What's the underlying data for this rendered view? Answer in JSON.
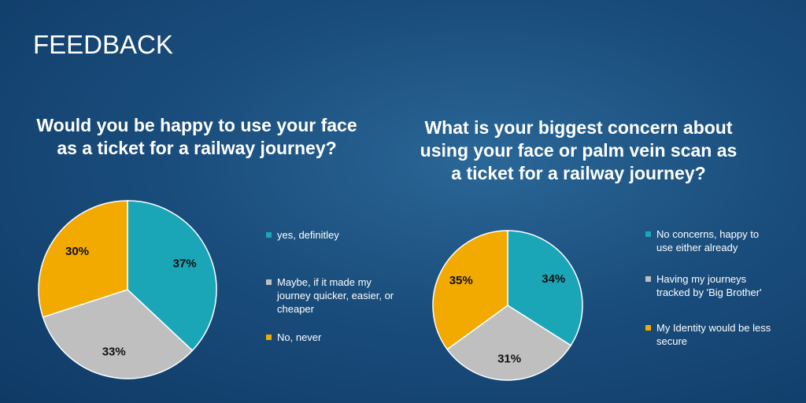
{
  "header": {
    "title": "FEEDBACK"
  },
  "chart_data": [
    {
      "type": "pie",
      "title": "Would you be happy to use your face as a ticket for a railway journey?",
      "categories": [
        "yes, definitley",
        "Maybe, if it made my journey quicker, easier, or cheaper",
        "No, never"
      ],
      "values": [
        37,
        33,
        30
      ],
      "value_labels": [
        "37%",
        "33%",
        "30%"
      ],
      "colors": [
        "#1aa6b7",
        "#bfbfbf",
        "#f2a900"
      ]
    },
    {
      "type": "pie",
      "title": "What is your biggest concern about using your face or palm vein scan as a ticket for a railway journey?",
      "categories": [
        "No concerns, happy to use either already",
        "Having my journeys tracked by 'Big Brother'",
        "My Identity would be less secure"
      ],
      "values": [
        34,
        31,
        35
      ],
      "value_labels": [
        "34%",
        "31%",
        "35%"
      ],
      "colors": [
        "#1aa6b7",
        "#bfbfbf",
        "#f2a900"
      ]
    }
  ]
}
